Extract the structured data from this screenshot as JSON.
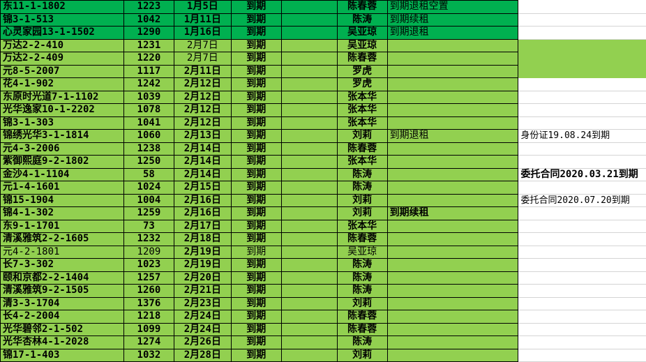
{
  "colors": {
    "dark_green": "#00b050",
    "light_green": "#92d050"
  },
  "rows": [
    {
      "addr": "东11-1-1802",
      "num": "1223",
      "date": "1月5日",
      "status": "到期",
      "agent": "陈春蓉",
      "note": "到期退租空置",
      "remark": "",
      "shade": "dark"
    },
    {
      "addr": "锦3-1-513",
      "num": "1042",
      "date": "1月11日",
      "status": "到期",
      "agent": "陈涛",
      "note": "到期续租",
      "remark": "",
      "shade": "dark"
    },
    {
      "addr": "心灵家园13-1-1502",
      "num": "1290",
      "date": "1月16日",
      "status": "到期",
      "agent": "吴亚琼",
      "note": "到期退租",
      "remark": "",
      "shade": "dark"
    },
    {
      "addr": "万达2-2-410",
      "num": "1231",
      "date": "2月7日",
      "status": "到期",
      "agent": "吴亚琼",
      "note": "",
      "remark": "",
      "shade": "light"
    },
    {
      "addr": "万达2-2-409",
      "num": "1220",
      "date": "2月7日",
      "status": "到期",
      "agent": "陈春蓉",
      "note": "",
      "remark": "",
      "shade": "light"
    },
    {
      "addr": "元8-5-2007",
      "num": "1117",
      "date": "2月11日",
      "status": "到期",
      "agent": "罗虎",
      "note": "",
      "remark": "",
      "shade": "light"
    },
    {
      "addr": "花4-1-902",
      "num": "1242",
      "date": "2月12日",
      "status": "到期",
      "agent": "罗虎",
      "note": "",
      "remark": "",
      "shade": "light"
    },
    {
      "addr": "东原时光道7-1-1102",
      "num": "1039",
      "date": "2月12日",
      "status": "到期",
      "agent": "张本华",
      "note": "",
      "remark": "",
      "shade": "light"
    },
    {
      "addr": "光华逸家10-1-2202",
      "num": "1078",
      "date": "2月12日",
      "status": "到期",
      "agent": "张本华",
      "note": "",
      "remark": "",
      "shade": "light"
    },
    {
      "addr": "锦3-1-303",
      "num": "1041",
      "date": "2月12日",
      "status": "到期",
      "agent": "张本华",
      "note": "",
      "remark": "",
      "shade": "light"
    },
    {
      "addr": "锦绣光华3-1-1814",
      "num": "1060",
      "date": "2月13日",
      "status": "到期",
      "agent": "刘莉",
      "note": "到期退租",
      "remark": "身份证19.08.24到期",
      "shade": "light"
    },
    {
      "addr": "元4-3-2006",
      "num": "1238",
      "date": "2月14日",
      "status": "到期",
      "agent": "陈春蓉",
      "note": "",
      "remark": "",
      "shade": "light"
    },
    {
      "addr": "紫御熙庭9-2-1802",
      "num": "1250",
      "date": "2月14日",
      "status": "到期",
      "agent": "张本华",
      "note": "",
      "remark": "",
      "shade": "light"
    },
    {
      "addr": "金沙4-1-1104",
      "num": "58",
      "date": "2月14日",
      "status": "到期",
      "agent": "陈涛",
      "note": "",
      "remark": "委托合同2020.03.21到期",
      "shade": "light"
    },
    {
      "addr": "元1-4-1601",
      "num": "1024",
      "date": "2月15日",
      "status": "到期",
      "agent": "陈涛",
      "note": "",
      "remark": "",
      "shade": "light"
    },
    {
      "addr": "锦15-1904",
      "num": "1004",
      "date": "2月16日",
      "status": "到期",
      "agent": "刘莉",
      "note": "",
      "remark": "委托合同2020.07.20到期",
      "shade": "light"
    },
    {
      "addr": "锦4-1-302",
      "num": "1259",
      "date": "2月16日",
      "status": "到期",
      "agent": "刘莉",
      "note": "到期续租",
      "remark": "",
      "shade": "light"
    },
    {
      "addr": "东9-1-1701",
      "num": "73",
      "date": "2月17日",
      "status": "到期",
      "agent": "张本华",
      "note": "",
      "remark": "",
      "shade": "light"
    },
    {
      "addr": "清溪雅筑2-2-1605",
      "num": "1232",
      "date": "2月18日",
      "status": "到期",
      "agent": "陈春蓉",
      "note": "",
      "remark": "",
      "shade": "light"
    },
    {
      "addr": "元4-2-1801",
      "num": "1209",
      "date": "2月19日",
      "status": "到期",
      "agent": "吴亚琼",
      "note": "",
      "remark": "",
      "shade": "light"
    },
    {
      "addr": "长7-3-302",
      "num": "1023",
      "date": "2月19日",
      "status": "到期",
      "agent": "陈涛",
      "note": "",
      "remark": "",
      "shade": "light"
    },
    {
      "addr": "颐和京都2-2-1404",
      "num": "1257",
      "date": "2月20日",
      "status": "到期",
      "agent": "陈涛",
      "note": "",
      "remark": "",
      "shade": "light"
    },
    {
      "addr": "清溪雅筑9-2-1505",
      "num": "1260",
      "date": "2月21日",
      "status": "到期",
      "agent": "陈涛",
      "note": "",
      "remark": "",
      "shade": "light"
    },
    {
      "addr": "清3-3-1704",
      "num": "1376",
      "date": "2月23日",
      "status": "到期",
      "agent": "刘莉",
      "note": "",
      "remark": "",
      "shade": "light"
    },
    {
      "addr": "长4-2-2004",
      "num": "1218",
      "date": "2月24日",
      "status": "到期",
      "agent": "陈春蓉",
      "note": "",
      "remark": "",
      "shade": "light"
    },
    {
      "addr": "光华碧邻2-1-502",
      "num": "1099",
      "date": "2月24日",
      "status": "到期",
      "agent": "陈春蓉",
      "note": "",
      "remark": "",
      "shade": "light"
    },
    {
      "addr": "光华杏林4-1-2028",
      "num": "1274",
      "date": "2月26日",
      "status": "到期",
      "agent": "陈涛",
      "note": "",
      "remark": "",
      "shade": "light"
    },
    {
      "addr": "锦17-1-403",
      "num": "1032",
      "date": "2月28日",
      "status": "到期",
      "agent": "刘莉",
      "note": "",
      "remark": "",
      "shade": "light"
    }
  ]
}
